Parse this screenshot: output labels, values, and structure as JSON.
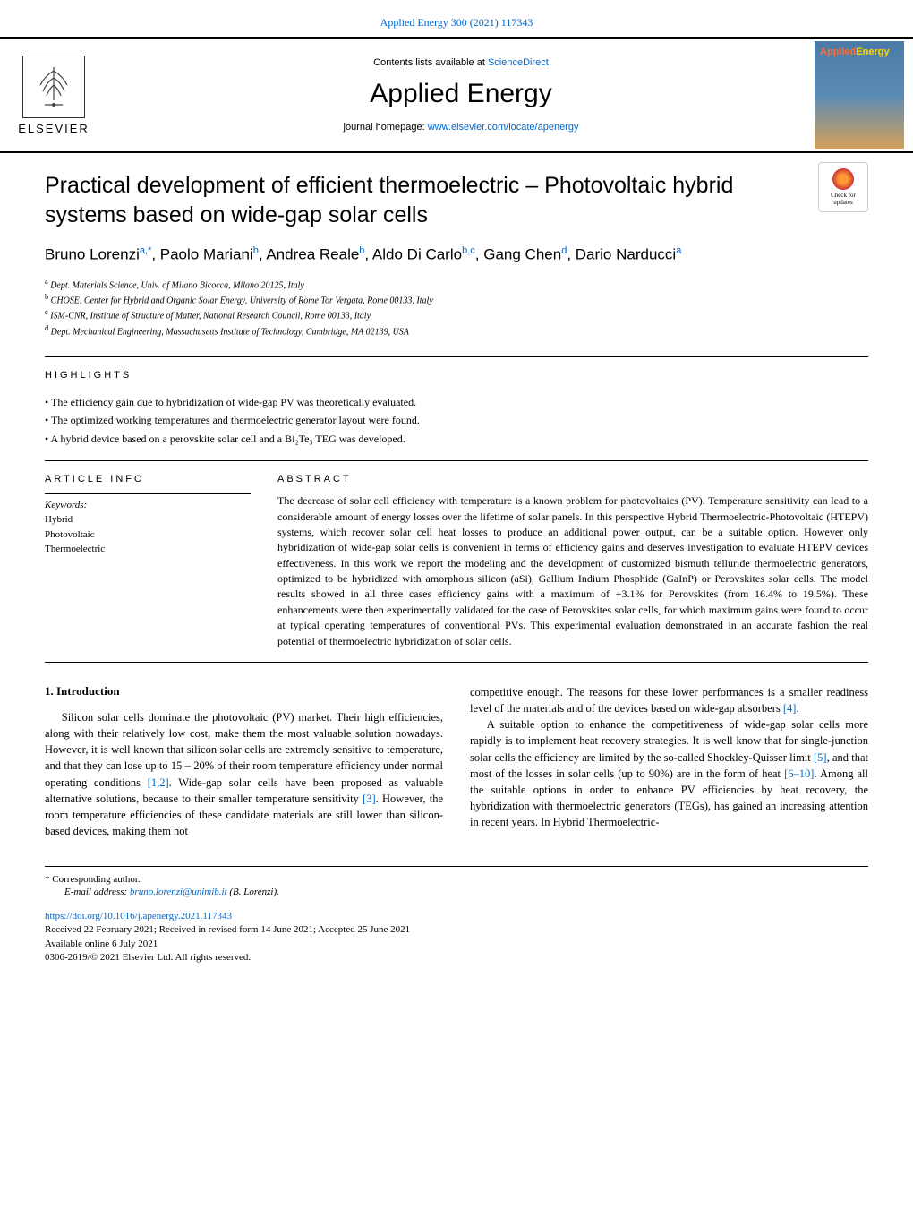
{
  "header": {
    "citation": "Applied Energy 300 (2021) 117343",
    "contents_prefix": "Contents lists available at ",
    "contents_link": "ScienceDirect",
    "journal_name": "Applied Energy",
    "homepage_prefix": "journal homepage: ",
    "homepage_url": "www.elsevier.com/locate/apenergy",
    "publisher": "ELSEVIER",
    "cover_title_1": "Applied",
    "cover_title_2": "Energy"
  },
  "updates_badge": {
    "line1": "Check for",
    "line2": "updates"
  },
  "article": {
    "title": "Practical development of efficient thermoelectric – Photovoltaic hybrid systems based on wide-gap solar cells",
    "authors_html": "Bruno Lorenzi|a,*|, Paolo Mariani|b|, Andrea Reale|b|, Aldo Di Carlo|b,c|, Gang Chen|d|, Dario Narducci|a|"
  },
  "affiliations": [
    {
      "sup": "a",
      "text": "Dept. Materials Science, Univ. of Milano Bicocca, Milano 20125, Italy"
    },
    {
      "sup": "b",
      "text": "CHOSE, Center for Hybrid and Organic Solar Energy, University of Rome Tor Vergata, Rome 00133, Italy"
    },
    {
      "sup": "c",
      "text": "ISM-CNR, Institute of Structure of Matter, National Research Council, Rome 00133, Italy"
    },
    {
      "sup": "d",
      "text": "Dept. Mechanical Engineering, Massachusetts Institute of Technology, Cambridge, MA 02139, USA"
    }
  ],
  "highlights": {
    "label": "HIGHLIGHTS",
    "items": [
      "The efficiency gain due to hybridization of wide-gap PV was theoretically evaluated.",
      "The optimized working temperatures and thermoelectric generator layout were found.",
      "A hybrid device based on a perovskite solar cell and a Bi₂Te₃ TEG was developed."
    ]
  },
  "article_info": {
    "label": "ARTICLE INFO",
    "keywords_label": "Keywords:",
    "keywords": [
      "Hybrid",
      "Photovoltaic",
      "Thermoelectric"
    ]
  },
  "abstract": {
    "label": "ABSTRACT",
    "text": "The decrease of solar cell efficiency with temperature is a known problem for photovoltaics (PV). Temperature sensitivity can lead to a considerable amount of energy losses over the lifetime of solar panels. In this perspective Hybrid Thermoelectric-Photovoltaic (HTEPV) systems, which recover solar cell heat losses to produce an additional power output, can be a suitable option. However only hybridization of wide-gap solar cells is convenient in terms of efficiency gains and deserves investigation to evaluate HTEPV devices effectiveness. In this work we report the modeling and the development of customized bismuth telluride thermoelectric generators, optimized to be hybridized with amorphous silicon (aSi), Gallium Indium Phosphide (GaInP) or Perovskites solar cells. The model results showed in all three cases efficiency gains with a maximum of +3.1% for Perovskites (from 16.4% to 19.5%). These enhancements were then experimentally validated for the case of Perovskites solar cells, for which maximum gains were found to occur at typical operating temperatures of conventional PVs. This experimental evaluation demonstrated in an accurate fashion the real potential of thermoelectric hybridization of solar cells."
  },
  "introduction": {
    "heading": "1. Introduction",
    "col1_p1": "Silicon solar cells dominate the photovoltaic (PV) market. Their high efficiencies, along with their relatively low cost, make them the most valuable solution nowadays. However, it is well known that silicon solar cells are extremely sensitive to temperature, and that they can lose up to 15 – 20% of their room temperature efficiency under normal operating conditions [1,2]. Wide-gap solar cells have been proposed as valuable alternative solutions, because to their smaller temperature sensitivity [3]. However, the room temperature efficiencies of these candidate materials are still lower than silicon-based devices, making them not",
    "col2_p1": "competitive enough. The reasons for these lower performances is a smaller readiness level of the materials and of the devices based on wide-gap absorbers [4].",
    "col2_p2": "A suitable option to enhance the competitiveness of wide-gap solar cells more rapidly is to implement heat recovery strategies. It is well know that for single-junction solar cells the efficiency are limited by the so-called Shockley-Quisser limit [5], and that most of the losses in solar cells (up to 90%) are in the form of heat [6–10]. Among all the suitable options in order to enhance PV efficiencies by heat recovery, the hybridization with thermoelectric generators (TEGs), has gained an increasing attention in recent years. In Hybrid Thermoelectric-"
  },
  "footer": {
    "corresponding": "* Corresponding author.",
    "email_label": "E-mail address: ",
    "email": "bruno.lorenzi@unimib.it",
    "email_suffix": " (B. Lorenzi).",
    "doi": "https://doi.org/10.1016/j.apenergy.2021.117343",
    "received": "Received 22 February 2021; Received in revised form 14 June 2021; Accepted 25 June 2021",
    "available": "Available online 6 July 2021",
    "copyright": "0306-2619/© 2021 Elsevier Ltd. All rights reserved."
  },
  "refs": {
    "r12": "[1,2]",
    "r3": "[3]",
    "r4": "[4]",
    "r5": "[5]",
    "r610": "[6–10]"
  }
}
